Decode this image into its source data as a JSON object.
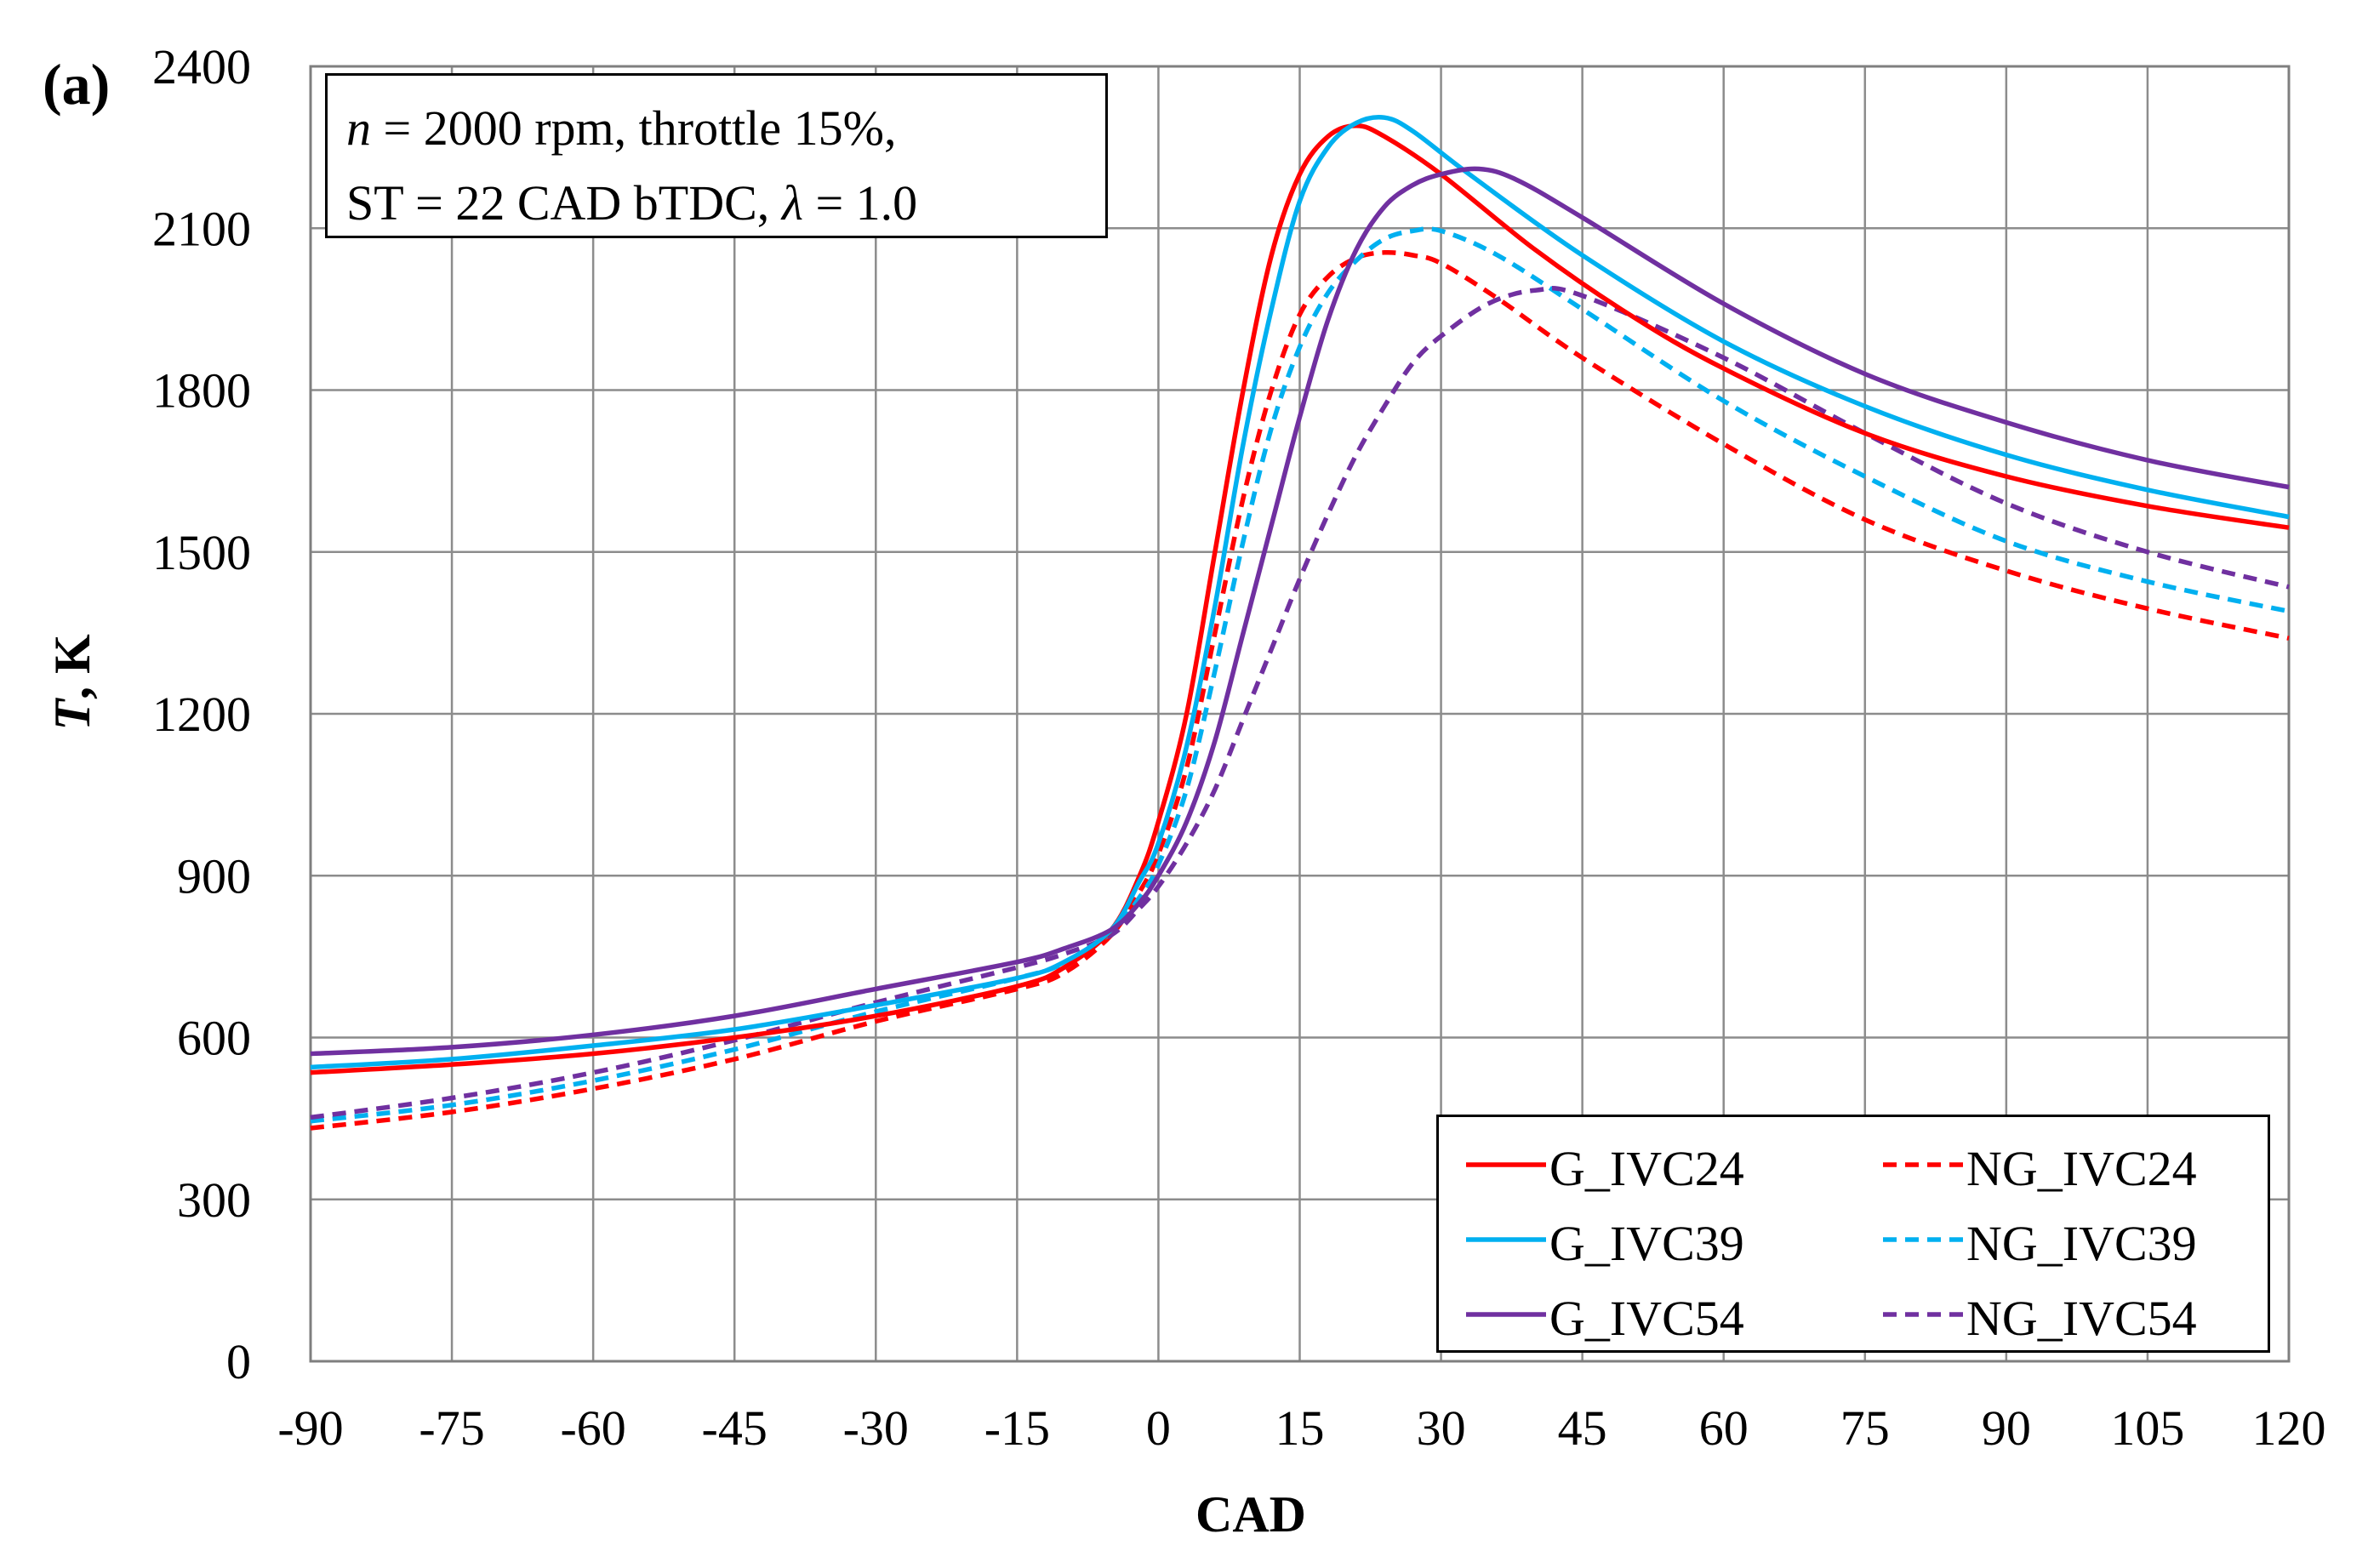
{
  "panel_label": "(a)",
  "annotation": {
    "n_symbol": "n",
    "line1_rest": " = 2000 rpm, throttle 15%,",
    "line2_prefix": "ST = 22 CAD bTDC, ",
    "lambda_symbol": "λ",
    "line2_suffix": " = 1.0"
  },
  "chart_data": {
    "type": "line",
    "xlabel": "CAD",
    "ylabel_italic": "T",
    "ylabel_rest": ", K",
    "xlim": [
      -90,
      120
    ],
    "ylim": [
      0,
      2400
    ],
    "x_ticks": [
      "-90",
      "-75",
      "-60",
      "-45",
      "-30",
      "-15",
      "0",
      "15",
      "30",
      "45",
      "60",
      "75",
      "90",
      "105",
      "120"
    ],
    "y_ticks": [
      "0",
      "300",
      "600",
      "900",
      "1200",
      "1500",
      "1800",
      "2100",
      "2400"
    ],
    "grid": true,
    "legend_position": "bottom-right",
    "series": [
      {
        "name": "G_IVC24",
        "color": "#ff0000",
        "dash": false,
        "points": [
          [
            -90,
            535
          ],
          [
            -75,
            550
          ],
          [
            -60,
            570
          ],
          [
            -45,
            600
          ],
          [
            -30,
            640
          ],
          [
            -15,
            695
          ],
          [
            -10,
            730
          ],
          [
            -5,
            800
          ],
          [
            -2,
            900
          ],
          [
            0,
            1000
          ],
          [
            3,
            1200
          ],
          [
            6,
            1500
          ],
          [
            9,
            1800
          ],
          [
            12,
            2050
          ],
          [
            15,
            2200
          ],
          [
            18,
            2270
          ],
          [
            21,
            2290
          ],
          [
            24,
            2270
          ],
          [
            30,
            2200
          ],
          [
            40,
            2060
          ],
          [
            50,
            1940
          ],
          [
            60,
            1840
          ],
          [
            75,
            1720
          ],
          [
            90,
            1640
          ],
          [
            105,
            1585
          ],
          [
            120,
            1545
          ]
        ]
      },
      {
        "name": "G_IVC39",
        "color": "#00b0f0",
        "dash": false,
        "points": [
          [
            -90,
            545
          ],
          [
            -75,
            560
          ],
          [
            -60,
            585
          ],
          [
            -45,
            615
          ],
          [
            -30,
            660
          ],
          [
            -15,
            710
          ],
          [
            -10,
            740
          ],
          [
            -5,
            800
          ],
          [
            -2,
            890
          ],
          [
            0,
            960
          ],
          [
            3,
            1140
          ],
          [
            6,
            1400
          ],
          [
            9,
            1700
          ],
          [
            12,
            1950
          ],
          [
            15,
            2150
          ],
          [
            18,
            2250
          ],
          [
            21,
            2295
          ],
          [
            24,
            2305
          ],
          [
            27,
            2280
          ],
          [
            33,
            2200
          ],
          [
            45,
            2050
          ],
          [
            60,
            1890
          ],
          [
            75,
            1770
          ],
          [
            90,
            1680
          ],
          [
            105,
            1615
          ],
          [
            120,
            1565
          ]
        ]
      },
      {
        "name": "G_IVC54",
        "color": "#7030a0",
        "dash": false,
        "points": [
          [
            -90,
            570
          ],
          [
            -75,
            582
          ],
          [
            -60,
            605
          ],
          [
            -45,
            640
          ],
          [
            -30,
            690
          ],
          [
            -15,
            740
          ],
          [
            -10,
            765
          ],
          [
            -5,
            800
          ],
          [
            -2,
            850
          ],
          [
            0,
            900
          ],
          [
            3,
            1000
          ],
          [
            6,
            1150
          ],
          [
            9,
            1350
          ],
          [
            12,
            1550
          ],
          [
            15,
            1750
          ],
          [
            18,
            1930
          ],
          [
            21,
            2060
          ],
          [
            24,
            2140
          ],
          [
            27,
            2180
          ],
          [
            30,
            2200
          ],
          [
            34,
            2210
          ],
          [
            38,
            2190
          ],
          [
            45,
            2120
          ],
          [
            60,
            1960
          ],
          [
            75,
            1830
          ],
          [
            90,
            1740
          ],
          [
            105,
            1670
          ],
          [
            120,
            1620
          ]
        ]
      },
      {
        "name": "NG_IVC24",
        "color": "#ff0000",
        "dash": true,
        "points": [
          [
            -90,
            432
          ],
          [
            -75,
            462
          ],
          [
            -60,
            505
          ],
          [
            -45,
            560
          ],
          [
            -30,
            630
          ],
          [
            -15,
            690
          ],
          [
            -10,
            720
          ],
          [
            -5,
            790
          ],
          [
            -2,
            870
          ],
          [
            0,
            940
          ],
          [
            3,
            1100
          ],
          [
            6,
            1350
          ],
          [
            9,
            1600
          ],
          [
            12,
            1800
          ],
          [
            15,
            1940
          ],
          [
            18,
            2010
          ],
          [
            21,
            2045
          ],
          [
            24,
            2055
          ],
          [
            27,
            2050
          ],
          [
            30,
            2035
          ],
          [
            36,
            1970
          ],
          [
            45,
            1860
          ],
          [
            60,
            1700
          ],
          [
            75,
            1560
          ],
          [
            90,
            1465
          ],
          [
            105,
            1395
          ],
          [
            120,
            1340
          ]
        ]
      },
      {
        "name": "NG_IVC39",
        "color": "#00b0f0",
        "dash": true,
        "points": [
          [
            -90,
            445
          ],
          [
            -75,
            475
          ],
          [
            -60,
            520
          ],
          [
            -45,
            578
          ],
          [
            -30,
            648
          ],
          [
            -15,
            710
          ],
          [
            -10,
            738
          ],
          [
            -5,
            795
          ],
          [
            -2,
            860
          ],
          [
            0,
            920
          ],
          [
            3,
            1060
          ],
          [
            6,
            1280
          ],
          [
            9,
            1520
          ],
          [
            12,
            1730
          ],
          [
            15,
            1880
          ],
          [
            18,
            1980
          ],
          [
            21,
            2040
          ],
          [
            24,
            2080
          ],
          [
            27,
            2095
          ],
          [
            30,
            2095
          ],
          [
            36,
            2050
          ],
          [
            45,
            1950
          ],
          [
            60,
            1780
          ],
          [
            75,
            1640
          ],
          [
            90,
            1520
          ],
          [
            105,
            1445
          ],
          [
            120,
            1390
          ]
        ]
      },
      {
        "name": "NG_IVC54",
        "color": "#7030a0",
        "dash": true,
        "points": [
          [
            -90,
            452
          ],
          [
            -75,
            488
          ],
          [
            -60,
            535
          ],
          [
            -45,
            595
          ],
          [
            -30,
            665
          ],
          [
            -15,
            730
          ],
          [
            -10,
            755
          ],
          [
            -5,
            790
          ],
          [
            -2,
            840
          ],
          [
            0,
            880
          ],
          [
            3,
            960
          ],
          [
            6,
            1060
          ],
          [
            9,
            1190
          ],
          [
            12,
            1320
          ],
          [
            15,
            1450
          ],
          [
            18,
            1570
          ],
          [
            21,
            1680
          ],
          [
            24,
            1770
          ],
          [
            27,
            1850
          ],
          [
            30,
            1900
          ],
          [
            35,
            1960
          ],
          [
            40,
            1985
          ],
          [
            45,
            1975
          ],
          [
            60,
            1860
          ],
          [
            75,
            1720
          ],
          [
            90,
            1590
          ],
          [
            105,
            1500
          ],
          [
            120,
            1435
          ]
        ]
      }
    ]
  }
}
